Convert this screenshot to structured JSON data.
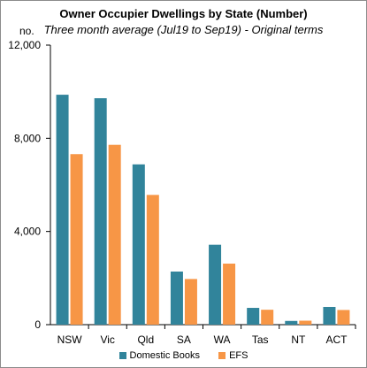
{
  "chart_data": {
    "type": "bar",
    "title": "Owner Occupier Dwellings by State (Number)",
    "subtitle": "Three month average (Jul19 to Sep19) - Original terms",
    "ylabel": "no.",
    "ylim": [
      0,
      12000
    ],
    "yticks": [
      0,
      4000,
      8000,
      12000
    ],
    "ytick_labels": [
      "0",
      "4,000",
      "8,000",
      "12,000"
    ],
    "categories": [
      "NSW",
      "Vic",
      "Qld",
      "SA",
      "WA",
      "Tas",
      "NT",
      "ACT"
    ],
    "series": [
      {
        "name": "Domestic Books",
        "color": "#31849b",
        "values": [
          9870,
          9720,
          6880,
          2280,
          3430,
          720,
          160,
          760
        ]
      },
      {
        "name": "EFS",
        "color": "#f79646",
        "values": [
          7320,
          7720,
          5570,
          1960,
          2620,
          640,
          170,
          630
        ]
      }
    ],
    "grid": false,
    "legend_position": "bottom"
  }
}
